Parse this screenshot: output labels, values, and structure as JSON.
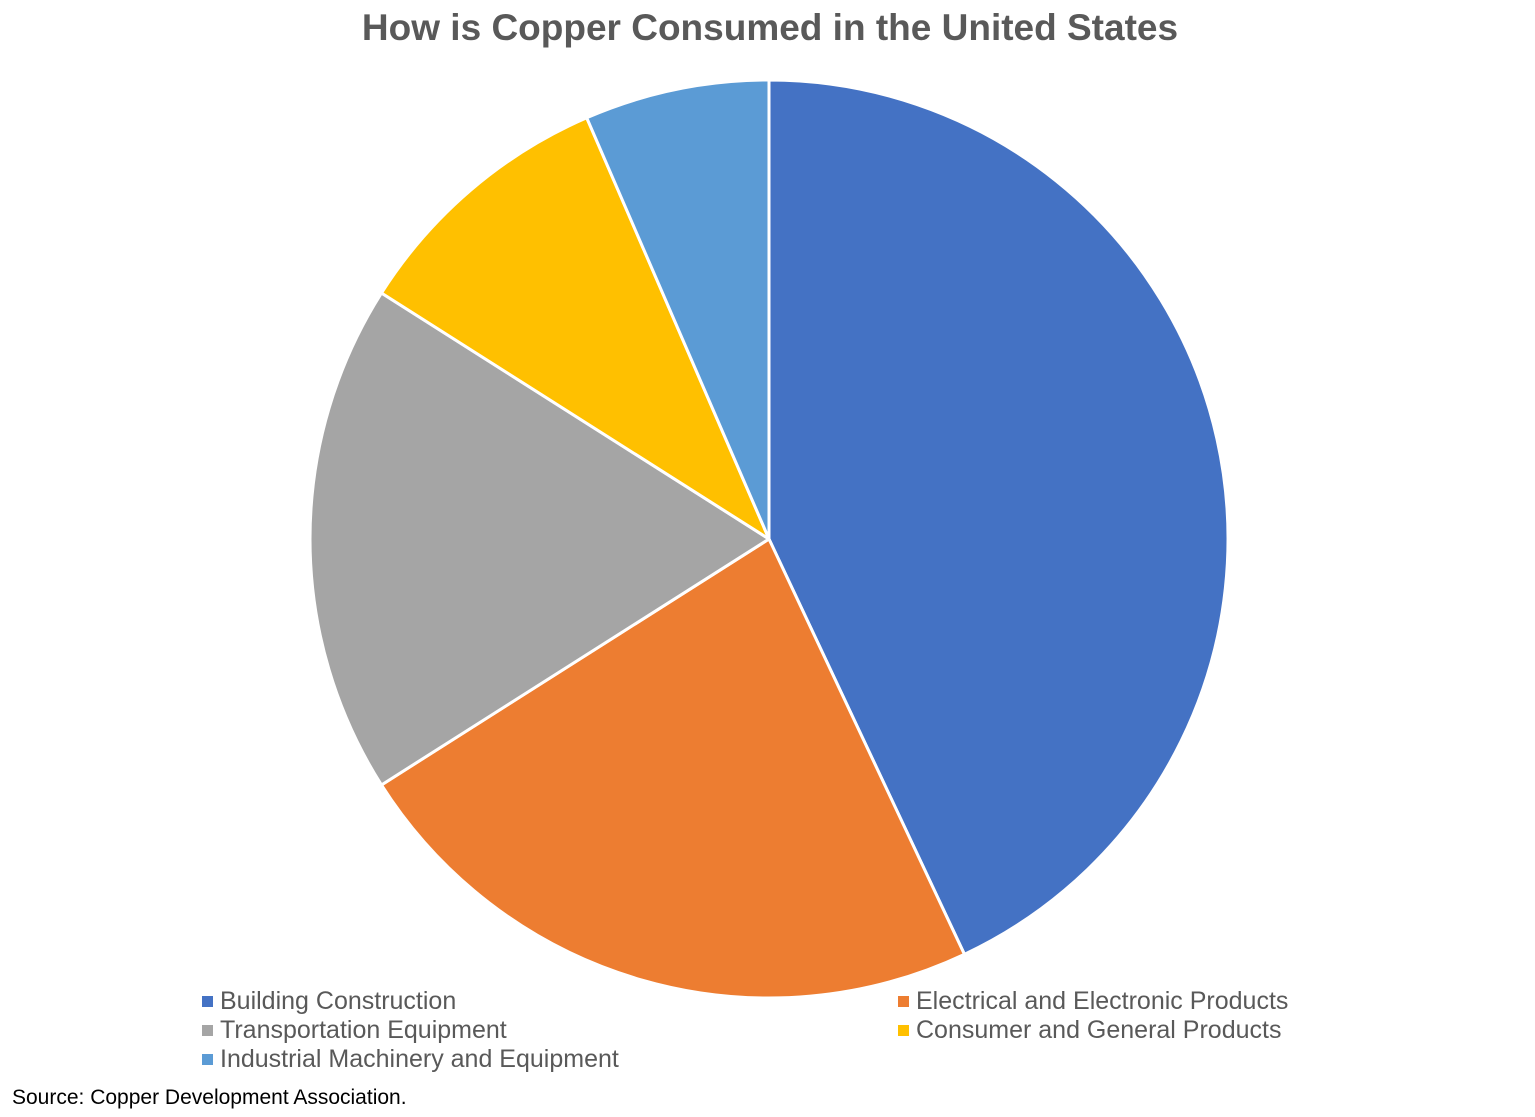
{
  "chart_data": {
    "type": "pie",
    "title": "How is Copper Consumed in the United States",
    "categories": [
      "Building Construction",
      "Electrical and Electronic Products",
      "Transportation Equipment",
      "Consumer and General Products",
      "Industrial Machinery and Equipment"
    ],
    "values": [
      43,
      23,
      18,
      9.5,
      6.5
    ],
    "unit": "%",
    "colors": [
      "#4472C4",
      "#ED7D31",
      "#A5A5A5",
      "#FFC000",
      "#5B9BD5"
    ],
    "start_angle_deg": 0,
    "direction": "clockwise",
    "legend_position": "bottom",
    "source": "Source: Copper Development Association."
  }
}
